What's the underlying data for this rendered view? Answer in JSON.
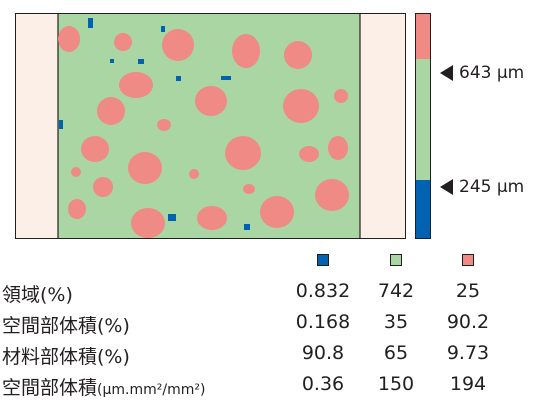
{
  "scale": {
    "colors": {
      "low": "#0062b0",
      "mid": "#a9d6a2",
      "high": "#ef8a85",
      "border": "#231f20",
      "side_panel": "#fcefe8"
    },
    "segments": [
      {
        "name": "high",
        "fraction": 0.2
      },
      {
        "name": "mid",
        "fraction": 0.54
      },
      {
        "name": "low",
        "fraction": 0.26
      }
    ],
    "markers": [
      {
        "arrow": "left-pointing-triangle",
        "label": "643 μm"
      },
      {
        "arrow": "left-pointing-triangle",
        "label": "245 μm"
      }
    ]
  },
  "legend": {
    "swatches": [
      "#0062b0",
      "#a9d6a2",
      "#ef8a85"
    ]
  },
  "table": {
    "rows": [
      {
        "label": "領域(%)",
        "label_suffix": "",
        "values": [
          "0.832",
          "742",
          "25"
        ]
      },
      {
        "label": "空間部体積(%)",
        "label_suffix": "",
        "values": [
          "0.168",
          "35",
          "90.2"
        ]
      },
      {
        "label": "材料部体積(%)",
        "label_suffix": "",
        "values": [
          "90.8",
          "65",
          "9.73"
        ]
      },
      {
        "label": "空間部体積",
        "label_suffix": "(μm.mm²/mm²)",
        "values": [
          "0.36",
          "150",
          "194"
        ]
      }
    ]
  }
}
